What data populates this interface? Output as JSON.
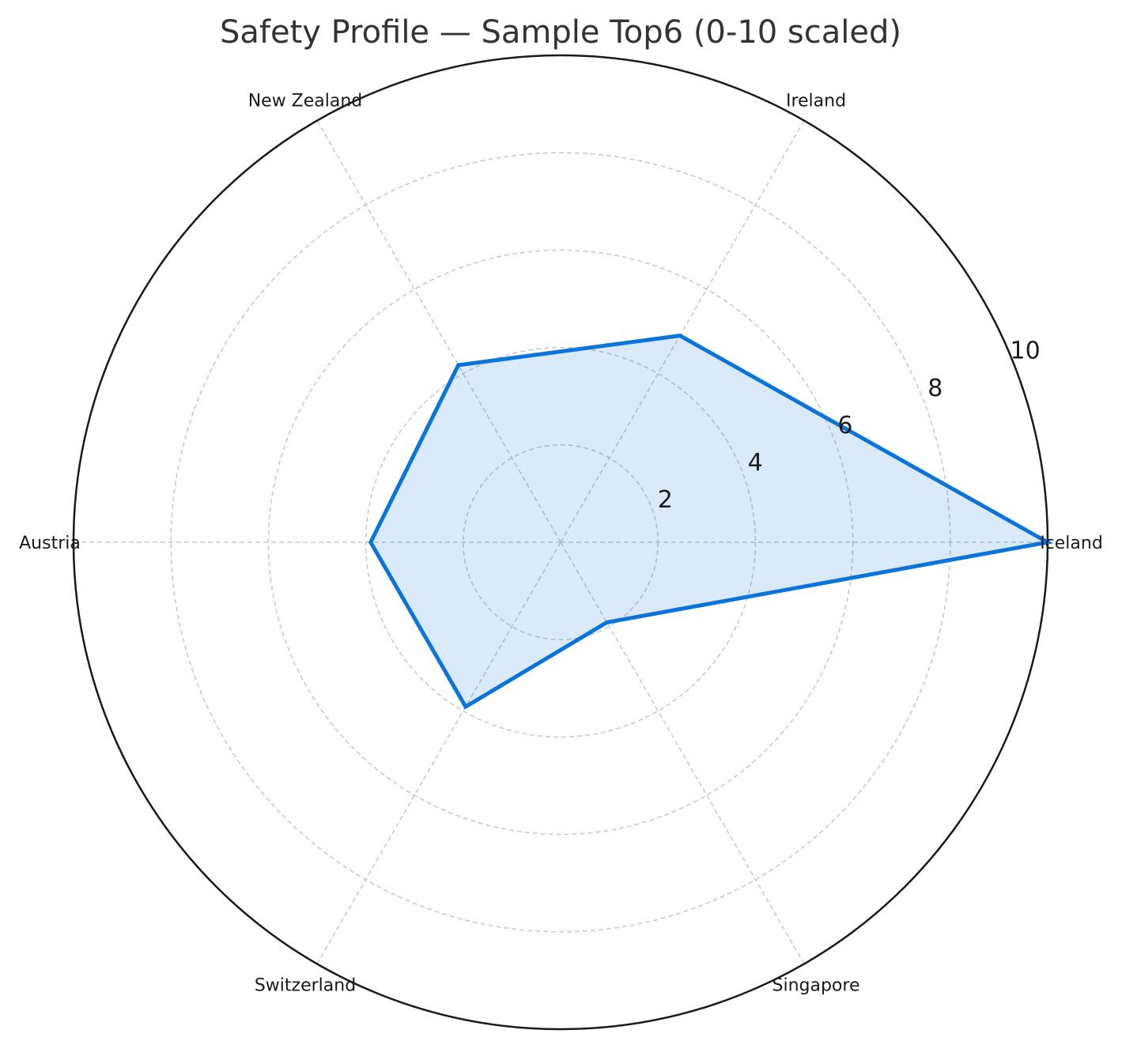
{
  "chart_data": {
    "type": "radar",
    "title": "Safety Profile — Sample Top6 (0-10 scaled)",
    "categories": [
      "Iceland",
      "Ireland",
      "New Zealand",
      "Austria",
      "Switzerland",
      "Singapore"
    ],
    "values": [
      10,
      4.9,
      4.2,
      3.9,
      3.9,
      1.9
    ],
    "rlim": [
      0,
      10
    ],
    "r_ticks": [
      2,
      4,
      6,
      8,
      10
    ],
    "grid": true,
    "colors": {
      "line": "#0a74da",
      "fill": "#0a74da",
      "grid": "#c8c8c8",
      "frame": "#1a1a1a"
    }
  }
}
